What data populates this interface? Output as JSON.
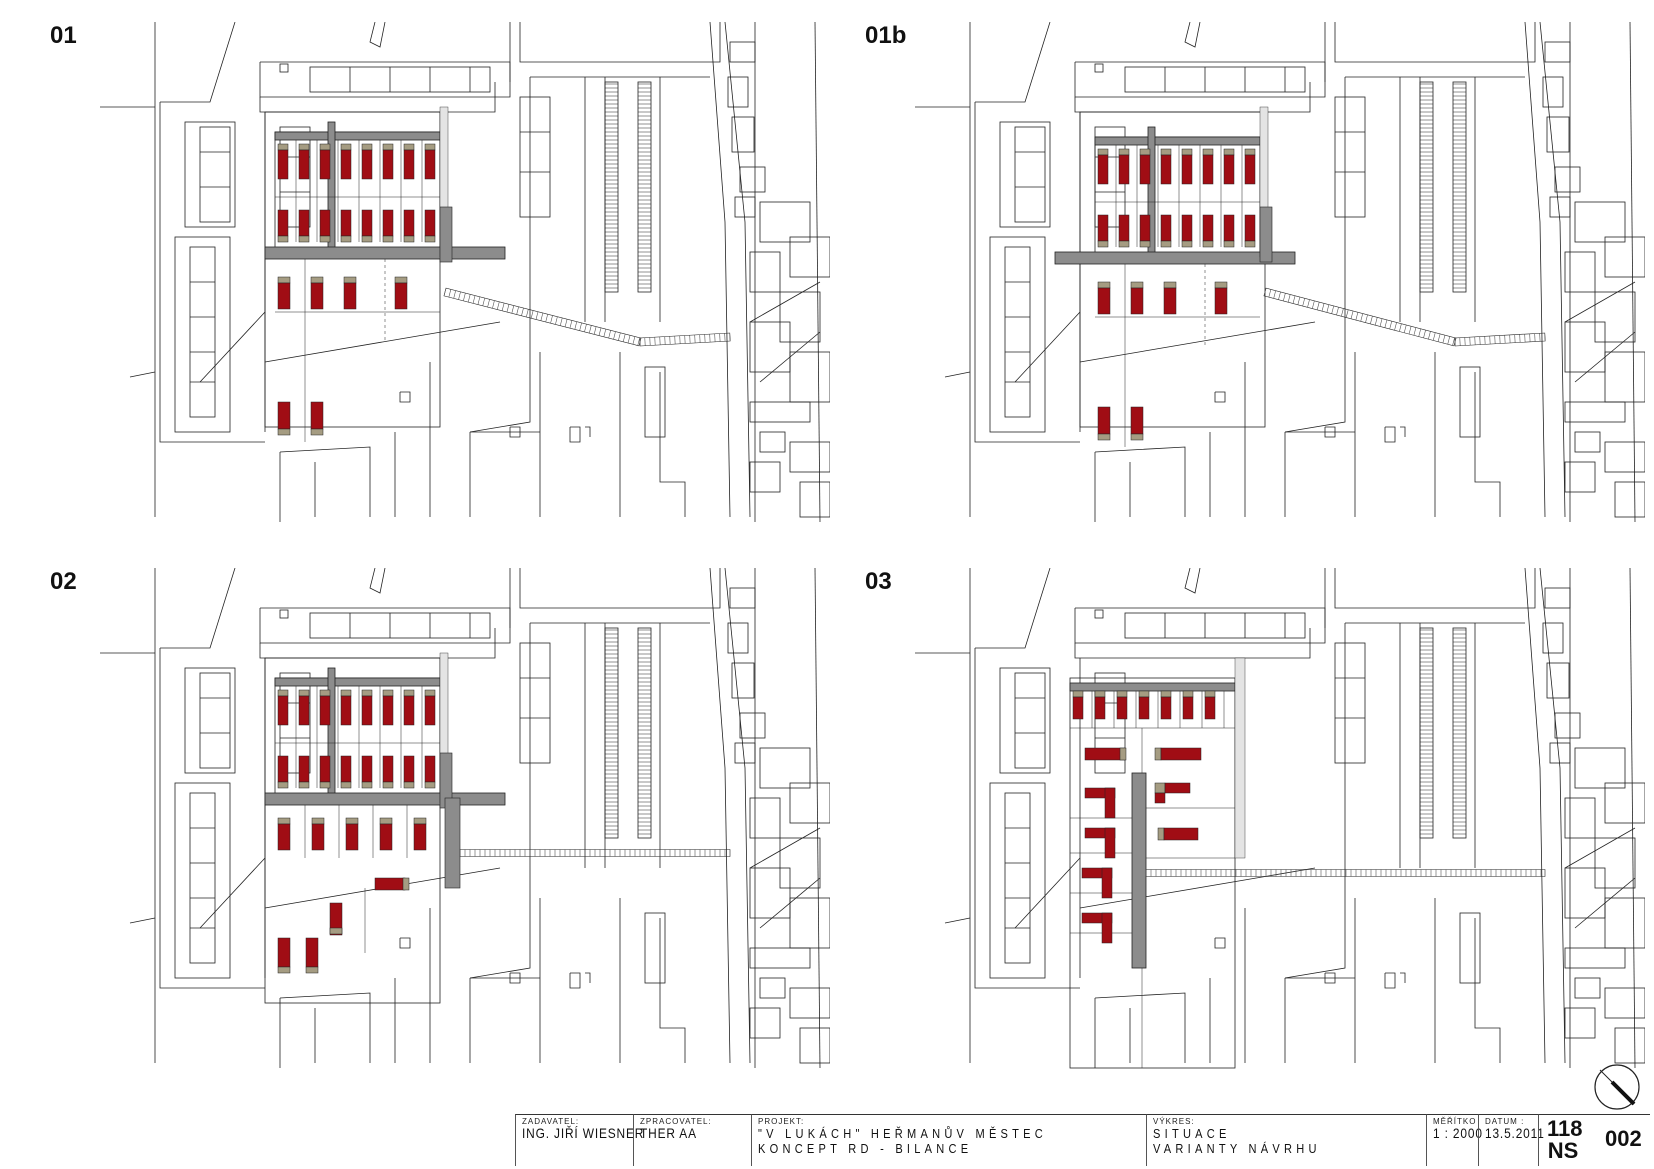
{
  "panels": [
    {
      "label": "01"
    },
    {
      "label": "01b"
    },
    {
      "label": "02"
    },
    {
      "label": "03"
    }
  ],
  "colors": {
    "house": "#a00d14",
    "garage": "#a59c82",
    "road": "#8c8c8c",
    "line": "#222222"
  },
  "title_block": {
    "client_label": "ZADAVATEL:",
    "client": "ING. JIŘÍ WIESNER",
    "author_label": "ZPRACOVATEL:",
    "author": "THER AA",
    "project_label": "PROJEKT:",
    "project_line1": "\"V LUKÁCH\" HEŘMANŮV MĚSTEC",
    "project_line2": "KONCEPT RD - BILANCE",
    "drawing_label": "VÝKRES:",
    "drawing_line1": "SITUACE",
    "drawing_line2": "VARIANTY NÁVRHU",
    "scale_label": "MĚŘÍTKO",
    "scale": "1 : 2000",
    "date_label": "DATUM :",
    "date": "13.5.2011",
    "code_top": "118",
    "code_bottom": "NS",
    "sheet_no": "002"
  }
}
